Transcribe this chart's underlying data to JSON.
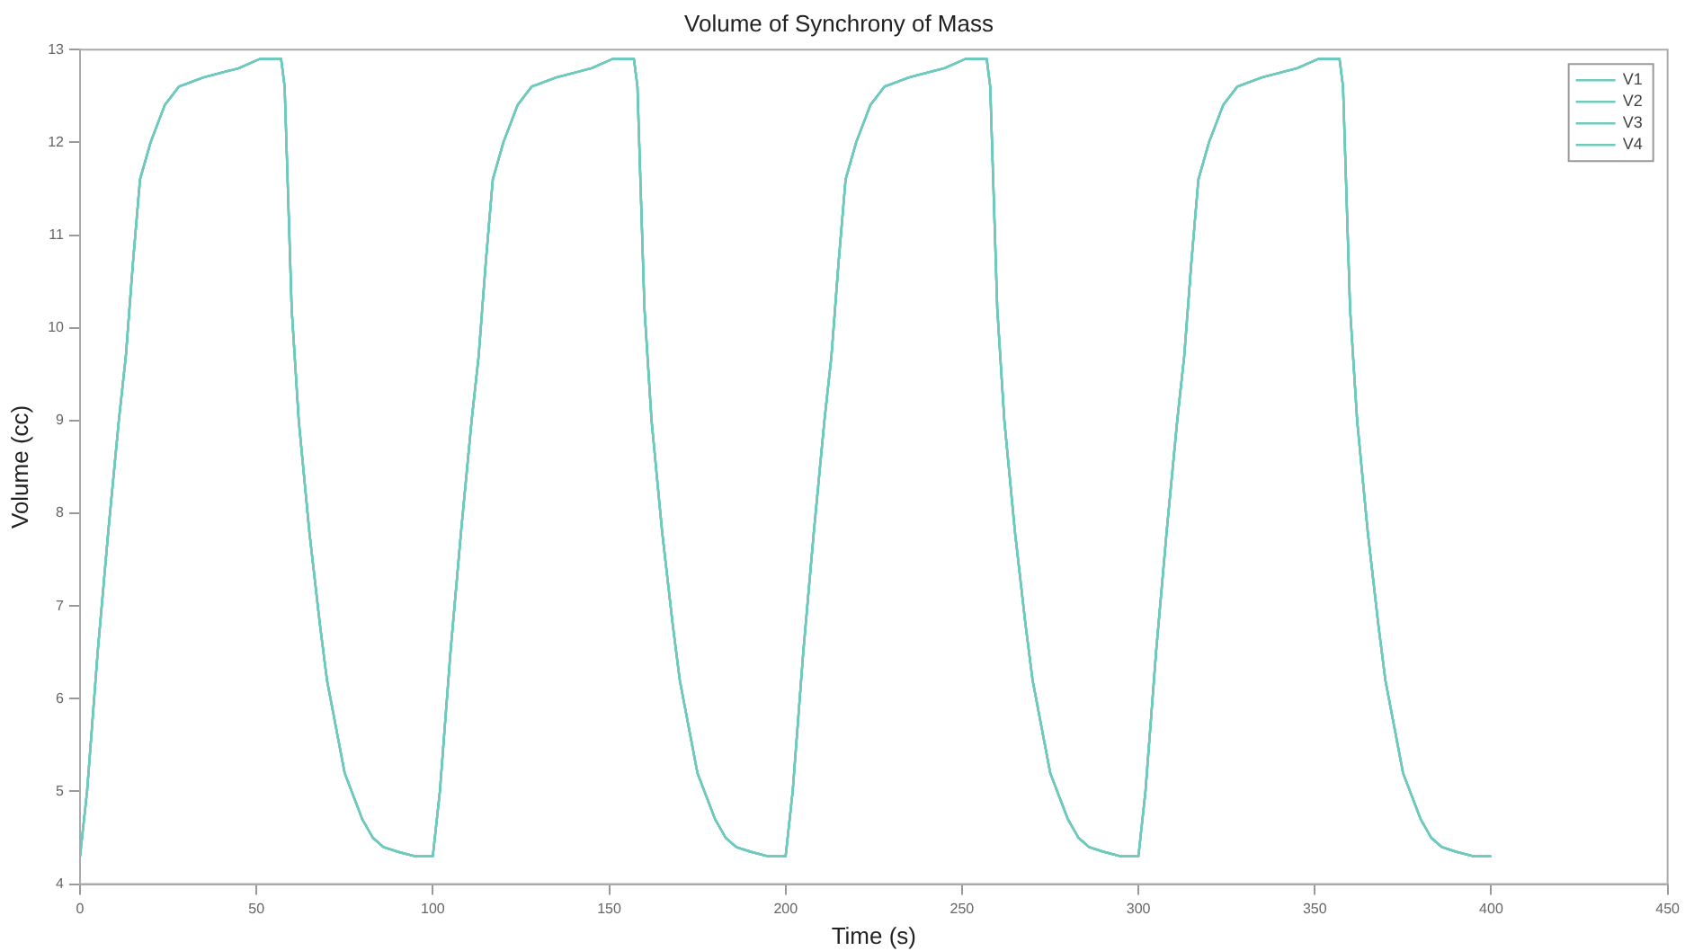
{
  "chart_data": {
    "type": "line",
    "title": "Volume of Synchrony of Mass",
    "xlabel": "Time (s)",
    "ylabel": "Volume (cc)",
    "x": [
      0,
      2,
      5,
      8,
      11,
      13,
      15,
      17,
      20,
      24,
      28,
      35,
      45,
      51,
      57,
      58,
      60,
      62,
      65,
      68,
      70,
      73,
      75,
      78,
      80,
      83,
      86,
      90,
      95,
      99,
      100,
      102,
      105,
      108,
      111,
      113,
      115,
      117,
      120,
      124,
      128,
      135,
      145,
      151,
      157,
      158,
      160,
      162,
      165,
      168,
      170,
      173,
      175,
      178,
      180,
      183,
      186,
      190,
      195,
      199,
      200,
      202,
      205,
      208,
      211,
      213,
      215,
      217,
      220,
      224,
      228,
      235,
      245,
      251,
      257,
      258,
      260,
      262,
      265,
      268,
      270,
      273,
      275,
      278,
      280,
      283,
      286,
      290,
      295,
      299,
      300,
      302,
      305,
      308,
      311,
      313,
      315,
      317,
      320,
      324,
      328,
      335,
      345,
      351,
      357,
      358,
      360,
      362,
      365,
      368,
      370,
      373,
      375,
      378,
      380,
      383,
      386,
      390,
      395,
      400
    ],
    "series": [
      {
        "name": "V1",
        "color": "#6fc9bd",
        "values": [
          4.3,
          5.0,
          6.5,
          7.8,
          9.0,
          9.7,
          10.7,
          11.6,
          12.0,
          12.4,
          12.6,
          12.7,
          12.8,
          12.9,
          12.9,
          12.6,
          10.2,
          9.0,
          7.8,
          6.8,
          6.2,
          5.6,
          5.2,
          4.9,
          4.7,
          4.5,
          4.4,
          4.35,
          4.3,
          4.3,
          4.3,
          5.0,
          6.5,
          7.8,
          9.0,
          9.7,
          10.7,
          11.6,
          12.0,
          12.4,
          12.6,
          12.7,
          12.8,
          12.9,
          12.9,
          12.6,
          10.2,
          9.0,
          7.8,
          6.8,
          6.2,
          5.6,
          5.2,
          4.9,
          4.7,
          4.5,
          4.4,
          4.35,
          4.3,
          4.3,
          4.3,
          5.0,
          6.5,
          7.8,
          9.0,
          9.7,
          10.7,
          11.6,
          12.0,
          12.4,
          12.6,
          12.7,
          12.8,
          12.9,
          12.9,
          12.6,
          10.2,
          9.0,
          7.8,
          6.8,
          6.2,
          5.6,
          5.2,
          4.9,
          4.7,
          4.5,
          4.4,
          4.35,
          4.3,
          4.3,
          4.3,
          5.0,
          6.5,
          7.8,
          9.0,
          9.7,
          10.7,
          11.6,
          12.0,
          12.4,
          12.6,
          12.7,
          12.8,
          12.9,
          12.9,
          12.6,
          10.2,
          9.0,
          7.8,
          6.8,
          6.2,
          5.6,
          5.2,
          4.9,
          4.7,
          4.5,
          4.4,
          4.35,
          4.3,
          4.3
        ]
      },
      {
        "name": "V2",
        "color": "#6fc9bd",
        "values": [
          4.3,
          5.0,
          6.5,
          7.8,
          9.0,
          9.7,
          10.7,
          11.6,
          12.0,
          12.4,
          12.6,
          12.7,
          12.8,
          12.9,
          12.9,
          12.6,
          10.2,
          9.0,
          7.8,
          6.8,
          6.2,
          5.6,
          5.2,
          4.9,
          4.7,
          4.5,
          4.4,
          4.35,
          4.3,
          4.3,
          4.3,
          5.0,
          6.5,
          7.8,
          9.0,
          9.7,
          10.7,
          11.6,
          12.0,
          12.4,
          12.6,
          12.7,
          12.8,
          12.9,
          12.9,
          12.6,
          10.2,
          9.0,
          7.8,
          6.8,
          6.2,
          5.6,
          5.2,
          4.9,
          4.7,
          4.5,
          4.4,
          4.35,
          4.3,
          4.3,
          4.3,
          5.0,
          6.5,
          7.8,
          9.0,
          9.7,
          10.7,
          11.6,
          12.0,
          12.4,
          12.6,
          12.7,
          12.8,
          12.9,
          12.9,
          12.6,
          10.2,
          9.0,
          7.8,
          6.8,
          6.2,
          5.6,
          5.2,
          4.9,
          4.7,
          4.5,
          4.4,
          4.35,
          4.3,
          4.3,
          4.3,
          5.0,
          6.5,
          7.8,
          9.0,
          9.7,
          10.7,
          11.6,
          12.0,
          12.4,
          12.6,
          12.7,
          12.8,
          12.9,
          12.9,
          12.6,
          10.2,
          9.0,
          7.8,
          6.8,
          6.2,
          5.6,
          5.2,
          4.9,
          4.7,
          4.5,
          4.4,
          4.35,
          4.3,
          4.3
        ]
      },
      {
        "name": "V3",
        "color": "#6fc9bd",
        "values": [
          4.3,
          5.0,
          6.5,
          7.8,
          9.0,
          9.7,
          10.7,
          11.6,
          12.0,
          12.4,
          12.6,
          12.7,
          12.8,
          12.9,
          12.9,
          12.6,
          10.2,
          9.0,
          7.8,
          6.8,
          6.2,
          5.6,
          5.2,
          4.9,
          4.7,
          4.5,
          4.4,
          4.35,
          4.3,
          4.3,
          4.3,
          5.0,
          6.5,
          7.8,
          9.0,
          9.7,
          10.7,
          11.6,
          12.0,
          12.4,
          12.6,
          12.7,
          12.8,
          12.9,
          12.9,
          12.6,
          10.2,
          9.0,
          7.8,
          6.8,
          6.2,
          5.6,
          5.2,
          4.9,
          4.7,
          4.5,
          4.4,
          4.35,
          4.3,
          4.3,
          4.3,
          5.0,
          6.5,
          7.8,
          9.0,
          9.7,
          10.7,
          11.6,
          12.0,
          12.4,
          12.6,
          12.7,
          12.8,
          12.9,
          12.9,
          12.6,
          10.2,
          9.0,
          7.8,
          6.8,
          6.2,
          5.6,
          5.2,
          4.9,
          4.7,
          4.5,
          4.4,
          4.35,
          4.3,
          4.3,
          4.3,
          5.0,
          6.5,
          7.8,
          9.0,
          9.7,
          10.7,
          11.6,
          12.0,
          12.4,
          12.6,
          12.7,
          12.8,
          12.9,
          12.9,
          12.6,
          10.2,
          9.0,
          7.8,
          6.8,
          6.2,
          5.6,
          5.2,
          4.9,
          4.7,
          4.5,
          4.4,
          4.35,
          4.3,
          4.3
        ]
      },
      {
        "name": "V4",
        "color": "#6fc9bd",
        "values": [
          4.3,
          5.0,
          6.5,
          7.8,
          9.0,
          9.7,
          10.7,
          11.6,
          12.0,
          12.4,
          12.6,
          12.7,
          12.8,
          12.9,
          12.9,
          12.6,
          10.2,
          9.0,
          7.8,
          6.8,
          6.2,
          5.6,
          5.2,
          4.9,
          4.7,
          4.5,
          4.4,
          4.35,
          4.3,
          4.3,
          4.3,
          5.0,
          6.5,
          7.8,
          9.0,
          9.7,
          10.7,
          11.6,
          12.0,
          12.4,
          12.6,
          12.7,
          12.8,
          12.9,
          12.9,
          12.6,
          10.2,
          9.0,
          7.8,
          6.8,
          6.2,
          5.6,
          5.2,
          4.9,
          4.7,
          4.5,
          4.4,
          4.35,
          4.3,
          4.3,
          4.3,
          5.0,
          6.5,
          7.8,
          9.0,
          9.7,
          10.7,
          11.6,
          12.0,
          12.4,
          12.6,
          12.7,
          12.8,
          12.9,
          12.9,
          12.6,
          10.2,
          9.0,
          7.8,
          6.8,
          6.2,
          5.6,
          5.2,
          4.9,
          4.7,
          4.5,
          4.4,
          4.35,
          4.3,
          4.3,
          4.3,
          5.0,
          6.5,
          7.8,
          9.0,
          9.7,
          10.7,
          11.6,
          12.0,
          12.4,
          12.6,
          12.7,
          12.8,
          12.9,
          12.9,
          12.6,
          10.2,
          9.0,
          7.8,
          6.8,
          6.2,
          5.6,
          5.2,
          4.9,
          4.7,
          4.5,
          4.4,
          4.35,
          4.3,
          4.3
        ]
      }
    ],
    "xlim": [
      0,
      450
    ],
    "xticks": [
      0,
      50,
      100,
      150,
      200,
      250,
      300,
      350,
      400,
      450
    ],
    "ylim": [
      4,
      13
    ],
    "yticks": [
      4,
      5,
      6,
      7,
      8,
      9,
      10,
      11,
      12,
      13
    ],
    "grid": false,
    "legend": "top right",
    "marker": "none",
    "line_style": "solid"
  }
}
